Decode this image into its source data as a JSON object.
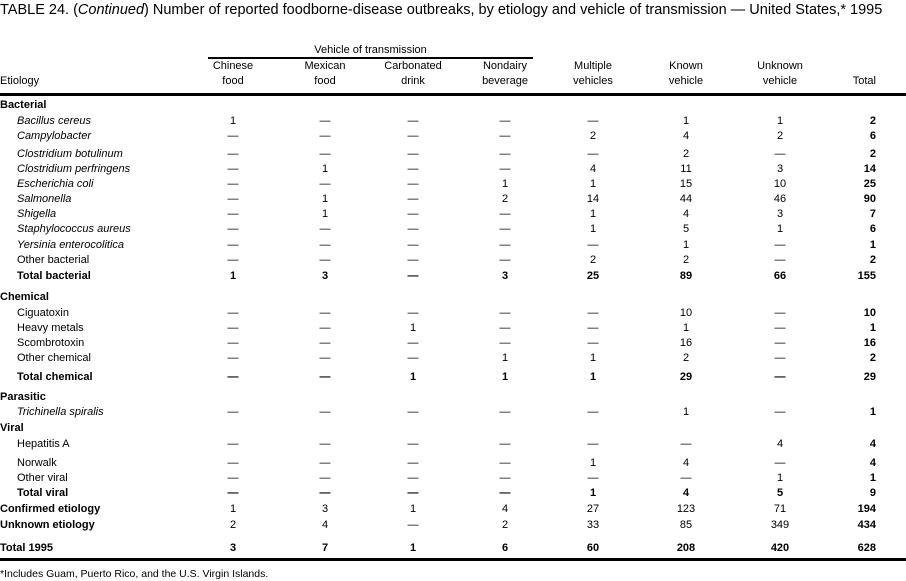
{
  "title_prefix": "TABLE 24. (",
  "title_continued": "Continued",
  "title_rest": ") Number of reported foodborne-disease outbreaks, by etiology and vehicle of transmission — United States,* 1995",
  "vehicle_header": "Vehicle of transmission",
  "columns": [
    {
      "l1": "",
      "l2": "Etiology"
    },
    {
      "l1": "Chinese",
      "l2": "food"
    },
    {
      "l1": "Mexican",
      "l2": "food"
    },
    {
      "l1": "Carbonated",
      "l2": "drink"
    },
    {
      "l1": "Nondairy",
      "l2": "beverage"
    },
    {
      "l1": "Multiple",
      "l2": "vehicles"
    },
    {
      "l1": "Known",
      "l2": "vehicle"
    },
    {
      "l1": "Unknown",
      "l2": "vehicle"
    },
    {
      "l1": "",
      "l2": "Total"
    }
  ],
  "rows": [
    {
      "type": "group",
      "label": "Bacterial"
    },
    {
      "type": "item",
      "italic": true,
      "label": "Bacillus cereus",
      "v": [
        "1",
        "—",
        "—",
        "—",
        "—",
        "1",
        "1",
        "2"
      ]
    },
    {
      "type": "item",
      "italic": true,
      "label": "Campylobacter",
      "v": [
        "—",
        "—",
        "—",
        "—",
        "2",
        "4",
        "2",
        "6"
      ]
    },
    {
      "type": "item",
      "italic": true,
      "label": "Clostridium botulinum",
      "v": [
        "—",
        "—",
        "—",
        "—",
        "—",
        "2",
        "—",
        "2"
      ]
    },
    {
      "type": "item",
      "italic": true,
      "label": "Clostridium perfringens",
      "v": [
        "—",
        "1",
        "—",
        "—",
        "4",
        "11",
        "3",
        "14"
      ]
    },
    {
      "type": "item",
      "italic": true,
      "label": "Escherichia coli",
      "v": [
        "—",
        "—",
        "—",
        "1",
        "1",
        "15",
        "10",
        "25"
      ]
    },
    {
      "type": "item",
      "italic": true,
      "label": "Salmonella",
      "v": [
        "—",
        "1",
        "—",
        "2",
        "14",
        "44",
        "46",
        "90"
      ]
    },
    {
      "type": "item",
      "italic": true,
      "label": "Shigella",
      "v": [
        "—",
        "1",
        "—",
        "—",
        "1",
        "4",
        "3",
        "7"
      ]
    },
    {
      "type": "item",
      "italic": true,
      "label": "Staphylococcus aureus",
      "v": [
        "—",
        "—",
        "—",
        "—",
        "1",
        "5",
        "1",
        "6"
      ]
    },
    {
      "type": "item",
      "italic": true,
      "label": "Yersinia enterocolitica",
      "v": [
        "—",
        "—",
        "—",
        "—",
        "—",
        "1",
        "—",
        "1"
      ]
    },
    {
      "type": "item",
      "label": "Other bacterial",
      "v": [
        "—",
        "—",
        "—",
        "—",
        "2",
        "2",
        "—",
        "2"
      ]
    },
    {
      "type": "total",
      "label": "Total bacterial",
      "v": [
        "1",
        "3",
        "—",
        "3",
        "25",
        "89",
        "66",
        "155"
      ]
    },
    {
      "type": "group",
      "label": "Chemical"
    },
    {
      "type": "item",
      "label": "Ciguatoxin",
      "v": [
        "—",
        "—",
        "—",
        "—",
        "—",
        "10",
        "—",
        "10"
      ]
    },
    {
      "type": "item",
      "label": "Heavy metals",
      "v": [
        "—",
        "—",
        "1",
        "—",
        "—",
        "1",
        "—",
        "1"
      ]
    },
    {
      "type": "item",
      "label": "Scombrotoxin",
      "v": [
        "—",
        "—",
        "—",
        "—",
        "—",
        "16",
        "—",
        "16"
      ]
    },
    {
      "type": "item",
      "label": "Other chemical",
      "v": [
        "—",
        "—",
        "—",
        "1",
        "1",
        "2",
        "—",
        "2"
      ]
    },
    {
      "type": "total",
      "label": "Total chemical",
      "v": [
        "—",
        "—",
        "1",
        "1",
        "1",
        "29",
        "—",
        "29"
      ]
    },
    {
      "type": "group",
      "label": "Parasitic"
    },
    {
      "type": "item",
      "italic": true,
      "label": "Trichinella spiralis",
      "v": [
        "—",
        "—",
        "—",
        "—",
        "—",
        "1",
        "—",
        "1"
      ]
    },
    {
      "type": "group",
      "label": "Viral"
    },
    {
      "type": "item",
      "label": "Hepatitis A",
      "v": [
        "—",
        "—",
        "—",
        "—",
        "—",
        "—",
        "4",
        "4"
      ]
    },
    {
      "type": "item",
      "label": "Norwalk",
      "v": [
        "—",
        "—",
        "—",
        "—",
        "1",
        "4",
        "—",
        "4"
      ]
    },
    {
      "type": "item",
      "label": "Other viral",
      "v": [
        "—",
        "—",
        "—",
        "—",
        "—",
        "—",
        "1",
        "1"
      ]
    },
    {
      "type": "total",
      "label": "Total viral",
      "v": [
        "—",
        "—",
        "—",
        "—",
        "1",
        "4",
        "5",
        "9"
      ]
    },
    {
      "type": "summary",
      "label": "Confirmed etiology",
      "v": [
        "1",
        "3",
        "1",
        "4",
        "27",
        "123",
        "71",
        "194"
      ]
    },
    {
      "type": "summary",
      "label": "Unknown etiology",
      "v": [
        "2",
        "4",
        "—",
        "2",
        "33",
        "85",
        "349",
        "434"
      ]
    },
    {
      "type": "grand",
      "label": "Total 1995",
      "v": [
        "3",
        "7",
        "1",
        "6",
        "60",
        "208",
        "420",
        "628"
      ]
    }
  ],
  "footnote": "*Includes Guam, Puerto Rico, and the U.S. Virgin Islands."
}
